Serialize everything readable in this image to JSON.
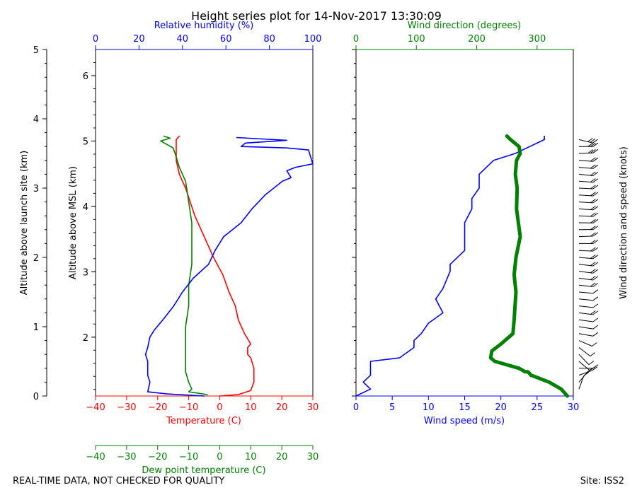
{
  "colors": {
    "axis": "#000000",
    "temperature": "#ff0000",
    "dewpoint": "#008000",
    "humidity": "#0000ff",
    "wind_speed": "#0000ff",
    "wind_direction": "#008000"
  },
  "footer": {
    "left": "REAL-TIME DATA, NOT CHECKED FOR QUALITY",
    "right": "Site: ISS2"
  },
  "chart_data": [
    {
      "type": "line",
      "title": "Height series plot for 14-Nov-2017 13:30:09",
      "ylabel_launch": "Altitude above launch site (km)",
      "ylabel_msl": "Altitude above MSL (km)",
      "ylim_launch": [
        0,
        5
      ],
      "ylim_msl": [
        1.1,
        6.4
      ],
      "yticks_launch": [
        0,
        1,
        2,
        3,
        4,
        5
      ],
      "yticks_msl": [
        2,
        3,
        4,
        5,
        6
      ],
      "temperature_axis": {
        "label": "Temperature (C)",
        "xlim": [
          -40,
          30
        ],
        "ticks": [
          -40,
          -30,
          -20,
          -10,
          0,
          10,
          20,
          30
        ]
      },
      "dewpoint_axis": {
        "label": "Dew point temperature (C)",
        "xlim": [
          -40,
          30
        ],
        "ticks": [
          -40,
          -30,
          -20,
          -10,
          0,
          10,
          20,
          30
        ]
      },
      "humidity_axis": {
        "label": "Relative humidity (%)",
        "xlim": [
          0,
          100
        ],
        "ticks": [
          0,
          20,
          40,
          60,
          80,
          100
        ]
      },
      "series": [
        {
          "name": "Temperature",
          "axis": "temperature",
          "points": [
            [
              0,
              0
            ],
            [
              6,
              0.02
            ],
            [
              10,
              0.08
            ],
            [
              11,
              0.2
            ],
            [
              11,
              0.4
            ],
            [
              10,
              0.55
            ],
            [
              9,
              0.6
            ],
            [
              9,
              0.7
            ],
            [
              10,
              0.75
            ],
            [
              8,
              0.9
            ],
            [
              6,
              1.1
            ],
            [
              5,
              1.3
            ],
            [
              3,
              1.5
            ],
            [
              1,
              1.75
            ],
            [
              -2,
              2.0
            ],
            [
              -4,
              2.2
            ],
            [
              -6,
              2.4
            ],
            [
              -8,
              2.6
            ],
            [
              -11,
              3.0
            ],
            [
              -13,
              3.2
            ],
            [
              -14,
              3.4
            ],
            [
              -14,
              3.5
            ],
            [
              -14,
              3.6
            ],
            [
              -14,
              3.7
            ],
            [
              -13,
              3.75
            ]
          ]
        },
        {
          "name": "Dew point",
          "axis": "dewpoint",
          "points": [
            [
              -4,
              0.02
            ],
            [
              -10,
              0.06
            ],
            [
              -9,
              0.1
            ],
            [
              -10,
              0.2
            ],
            [
              -11,
              0.35
            ],
            [
              -11,
              0.5
            ],
            [
              -11,
              0.7
            ],
            [
              -11,
              1.0
            ],
            [
              -10,
              1.3
            ],
            [
              -10,
              1.6
            ],
            [
              -9,
              1.9
            ],
            [
              -9,
              2.2
            ],
            [
              -9,
              2.5
            ],
            [
              -10,
              2.8
            ],
            [
              -11,
              3.1
            ],
            [
              -13,
              3.3
            ],
            [
              -14,
              3.45
            ],
            [
              -15,
              3.58
            ],
            [
              -17,
              3.63
            ],
            [
              -19,
              3.68
            ],
            [
              -16,
              3.72
            ],
            [
              -18,
              3.75
            ]
          ]
        },
        {
          "name": "Relative humidity",
          "axis": "humidity",
          "points": [
            [
              50,
              0
            ],
            [
              33,
              0.03
            ],
            [
              24,
              0.06
            ],
            [
              25,
              0.2
            ],
            [
              24,
              0.3
            ],
            [
              24,
              0.5
            ],
            [
              23,
              0.6
            ],
            [
              24,
              0.7
            ],
            [
              25,
              0.85
            ],
            [
              27,
              0.95
            ],
            [
              31,
              1.1
            ],
            [
              36,
              1.3
            ],
            [
              40,
              1.5
            ],
            [
              45,
              1.7
            ],
            [
              52,
              1.9
            ],
            [
              55,
              2.1
            ],
            [
              59,
              2.3
            ],
            [
              67,
              2.5
            ],
            [
              72,
              2.7
            ],
            [
              78,
              2.9
            ],
            [
              86,
              3.1
            ],
            [
              90,
              3.15
            ],
            [
              88,
              3.25
            ],
            [
              92,
              3.3
            ],
            [
              100,
              3.35
            ],
            [
              99,
              3.45
            ],
            [
              98,
              3.55
            ],
            [
              88,
              3.58
            ],
            [
              67,
              3.6
            ],
            [
              69,
              3.65
            ],
            [
              88,
              3.69
            ],
            [
              65,
              3.73
            ]
          ]
        }
      ]
    },
    {
      "type": "line",
      "wind_speed_axis": {
        "label": "Wind speed (m/s)",
        "xlim": [
          0,
          30
        ],
        "ticks": [
          0,
          5,
          10,
          15,
          20,
          25,
          30
        ]
      },
      "wind_direction_axis": {
        "label": "Wind direction (degrees)",
        "xlim": [
          0,
          360
        ],
        "ticks": [
          0,
          100,
          200,
          300
        ]
      },
      "ylim_launch": [
        0,
        5
      ],
      "series": [
        {
          "name": "Wind speed",
          "axis": "wind_speed",
          "points": [
            [
              0,
              0
            ],
            [
              2,
              0.1
            ],
            [
              1,
              0.2
            ],
            [
              2,
              0.3
            ],
            [
              2,
              0.4
            ],
            [
              2,
              0.5
            ],
            [
              6,
              0.55
            ],
            [
              8,
              0.7
            ],
            [
              8,
              0.8
            ],
            [
              9,
              0.9
            ],
            [
              10,
              1.05
            ],
            [
              12,
              1.2
            ],
            [
              11,
              1.4
            ],
            [
              12,
              1.55
            ],
            [
              13,
              1.8
            ],
            [
              13,
              1.9
            ],
            [
              15,
              2.1
            ],
            [
              15,
              2.3
            ],
            [
              15,
              2.5
            ],
            [
              16,
              2.7
            ],
            [
              16,
              2.85
            ],
            [
              17,
              3.0
            ],
            [
              17,
              3.1
            ],
            [
              17,
              3.2
            ],
            [
              19,
              3.4
            ],
            [
              22,
              3.5
            ],
            [
              24,
              3.6
            ],
            [
              26,
              3.7
            ],
            [
              26,
              3.75
            ]
          ]
        },
        {
          "name": "Wind direction",
          "axis": "wind_direction",
          "points": [
            [
              350,
              0
            ],
            [
              340,
              0.1
            ],
            [
              320,
              0.2
            ],
            [
              290,
              0.3
            ],
            [
              285,
              0.35
            ],
            [
              280,
              0.35
            ],
            [
              270,
              0.4
            ],
            [
              250,
              0.45
            ],
            [
              230,
              0.5
            ],
            [
              223,
              0.55
            ],
            [
              225,
              0.65
            ],
            [
              240,
              0.75
            ],
            [
              260,
              0.9
            ],
            [
              262,
              1.1
            ],
            [
              265,
              1.5
            ],
            [
              262,
              1.75
            ],
            [
              265,
              2.0
            ],
            [
              272,
              2.3
            ],
            [
              266,
              2.7
            ],
            [
              267,
              3.0
            ],
            [
              264,
              3.2
            ],
            [
              266,
              3.4
            ],
            [
              272,
              3.5
            ],
            [
              270,
              3.6
            ],
            [
              256,
              3.7
            ],
            [
              250,
              3.75
            ]
          ]
        }
      ],
      "wind_barbs_label": "Wind direction and speed (knots)"
    }
  ]
}
